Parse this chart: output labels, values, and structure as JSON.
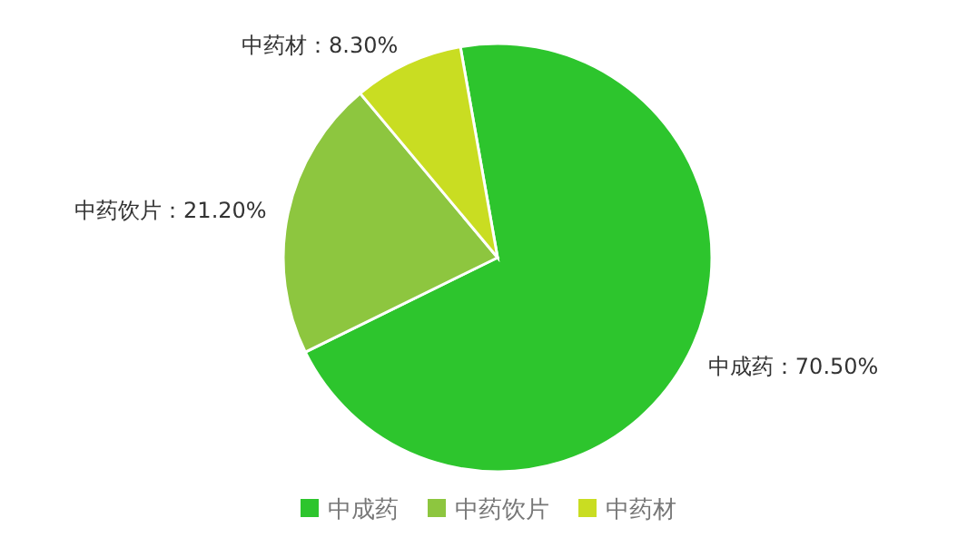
{
  "chart_data": {
    "type": "pie",
    "categories": [
      "中成药",
      "中药饮片",
      "中药材"
    ],
    "values": [
      70.5,
      21.2,
      8.3
    ],
    "value_labels": [
      "：70.50%",
      "：21.20%",
      "：8.30%"
    ],
    "colors": [
      "#2dc52d",
      "#8dc63f",
      "#c9dd22"
    ],
    "legend": "bottom"
  }
}
